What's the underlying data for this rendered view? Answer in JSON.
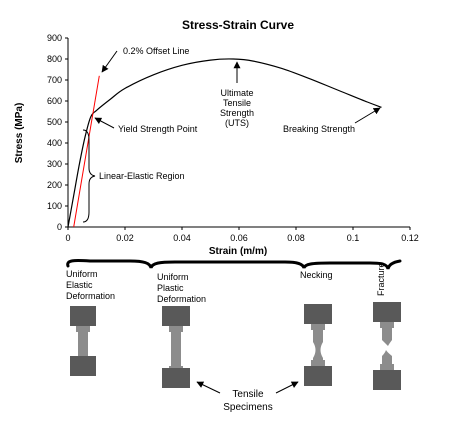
{
  "chart_data": {
    "type": "line",
    "title": "Stress-Strain Curve",
    "xlabel": "Strain (m/m)",
    "ylabel": "Stress (MPa)",
    "xlim": [
      0,
      0.12
    ],
    "ylim": [
      0,
      900
    ],
    "x_ticks": [
      "0",
      "0.02",
      "0.04",
      "0.06",
      "0.08",
      "0.1",
      "0.12"
    ],
    "y_ticks": [
      "0",
      "100",
      "200",
      "300",
      "400",
      "500",
      "600",
      "700",
      "800",
      "900"
    ],
    "grid": false,
    "series": [
      {
        "color": "#000000",
        "x": [
          0,
          0.002,
          0.004,
          0.006,
          0.008,
          0.01,
          0.015,
          0.02,
          0.03,
          0.04,
          0.05,
          0.058,
          0.065,
          0.075,
          0.085,
          0.095,
          0.105,
          0.11
        ],
        "y": [
          0,
          150,
          300,
          430,
          525,
          555,
          610,
          660,
          725,
          770,
          795,
          800,
          790,
          755,
          705,
          650,
          595,
          570
        ]
      },
      {
        "color": "#ff0000",
        "x": [
          0.002,
          0.011
        ],
        "y": [
          0,
          720
        ]
      }
    ],
    "annotations": {
      "offset_line": "0.2% Offset Line",
      "yield": "Yield Strength Point",
      "elastic": "Linear-Elastic Region",
      "uts": [
        "Ultimate",
        "Tensile",
        "Strength",
        "(UTS)"
      ],
      "breaking": "Breaking Strength"
    }
  },
  "stages": {
    "uniform_elastic": [
      "Uniform",
      "Elastic",
      "Deformation"
    ],
    "uniform_plastic": [
      "Uniform",
      "Plastic",
      "Deformation"
    ],
    "necking": "Necking",
    "fracture": "Fracture"
  },
  "specimens_label": [
    "Tensile",
    "Specimens"
  ],
  "colors": {
    "specimen_grip": "#595959",
    "specimen_body": "#8c8c8c",
    "offset_line": "#ff0000"
  }
}
